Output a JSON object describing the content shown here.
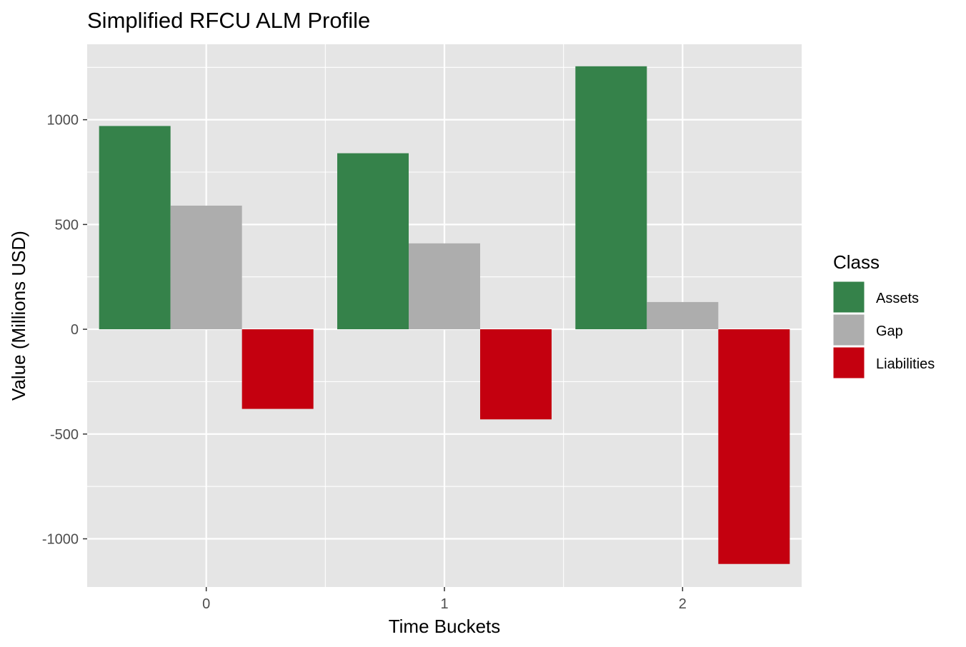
{
  "chart_data": {
    "type": "bar",
    "title": "Simplified RFCU ALM Profile",
    "xlabel": "Time Buckets",
    "ylabel": "Value (Millions USD)",
    "categories": [
      "0",
      "1",
      "2"
    ],
    "series": [
      {
        "name": "Assets",
        "color": "#35824A",
        "values": [
          970,
          840,
          1255
        ]
      },
      {
        "name": "Gap",
        "color": "#ADADAD",
        "values": [
          590,
          410,
          130
        ]
      },
      {
        "name": "Liabilities",
        "color": "#C4000F",
        "values": [
          -380,
          -430,
          -1120
        ]
      }
    ],
    "yticks": [
      -1000,
      -500,
      0,
      500,
      1000
    ],
    "ytick_labels": [
      "-1000",
      "-500",
      "0",
      "500",
      "1000"
    ],
    "ylim": [
      -1230,
      1360
    ],
    "xlim": [
      -0.5,
      2.5
    ],
    "grid": true,
    "legend": {
      "title": "Class",
      "position": "right"
    },
    "panel_background": "#E5E5E5",
    "gridline_color": "#FFFFFF"
  }
}
